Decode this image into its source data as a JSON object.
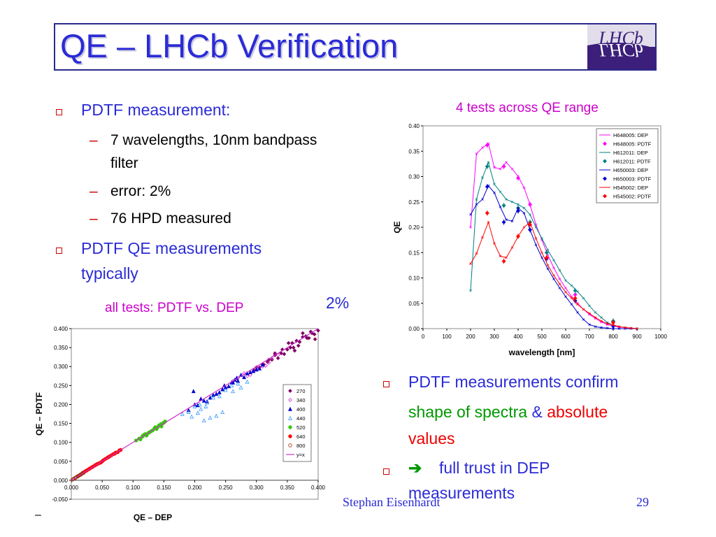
{
  "slide": {
    "title": "QE – LHCb Verification",
    "logo_text_top": "LHCb",
    "logo_text_bottom": "LHCb",
    "bullet1": "PDTF measurement:",
    "sub1a_line1": "7 wavelengths, 10nm bandpass",
    "sub1a_line2": "filter",
    "sub1b": "error: 2%",
    "sub1c": "76 HPD measured",
    "bullet2_line1": "PDTF QE measurements",
    "bullet2_line2": "typically",
    "bullet2_hidden_tail": "2%",
    "caption_right": "4 tests across QE range",
    "caption_left": "all tests: PDTF vs. DEP",
    "bullet3_line1": "PDTF measurements confirm",
    "bullet3_green": "shape of spectra",
    "bullet3_amp": "&",
    "bullet3_red1": "absolute",
    "bullet3_red2": "values",
    "bullet4_arrow": "➔",
    "bullet4_line1": "full trust in DEP",
    "bullet4_line2": "measurements",
    "footer_author": "Stephan Eisenhardt",
    "footer_page": "29",
    "footer_dash": "–"
  },
  "chart_data": [
    {
      "type": "line",
      "xlabel": "wavelength [nm]",
      "ylabel": "QE",
      "xlim": [
        0,
        1000
      ],
      "ylim": [
        0,
        0.4
      ],
      "xticks": [
        "0",
        "100",
        "200",
        "300",
        "400",
        "500",
        "600",
        "700",
        "800",
        "900",
        "1000"
      ],
      "yticks": [
        "0.00",
        "0.05",
        "0.10",
        "0.15",
        "0.20",
        "0.25",
        "0.30",
        "0.35",
        "0.40"
      ],
      "legend": "top-right",
      "series": [
        {
          "name": "H648005: DEP",
          "color": "#ff00ff",
          "kind": "line",
          "x": [
            200,
            225,
            250,
            275,
            300,
            325,
            350,
            375,
            400,
            425,
            450,
            475,
            500,
            525,
            550,
            575,
            600,
            625,
            650,
            675,
            700,
            725,
            750,
            775,
            800,
            825,
            850,
            875,
            900
          ],
          "y": [
            0.2,
            0.345,
            0.357,
            0.365,
            0.318,
            0.315,
            0.328,
            0.315,
            0.3,
            0.278,
            0.245,
            0.205,
            0.175,
            0.145,
            0.12,
            0.098,
            0.08,
            0.063,
            0.05,
            0.038,
            0.028,
            0.02,
            0.013,
            0.008,
            0.005,
            0.003,
            0.002,
            0.001,
            0.0
          ]
        },
        {
          "name": "H648005: PDTF",
          "color": "#ff00ff",
          "kind": "points",
          "x": [
            270,
            340,
            400,
            450,
            520,
            640,
            800
          ],
          "y": [
            0.362,
            0.32,
            0.297,
            0.245,
            0.15,
            0.067,
            0.014
          ]
        },
        {
          "name": "H612011: DEP",
          "color": "#008080",
          "kind": "line",
          "x": [
            200,
            225,
            250,
            275,
            300,
            325,
            350,
            375,
            400,
            425,
            450,
            475,
            500,
            525,
            550,
            575,
            600,
            625,
            650,
            675,
            700,
            725,
            750,
            775,
            800,
            825,
            850,
            875,
            900
          ],
          "y": [
            0.075,
            0.255,
            0.298,
            0.328,
            0.285,
            0.27,
            0.255,
            0.25,
            0.245,
            0.238,
            0.225,
            0.2,
            0.178,
            0.155,
            0.135,
            0.115,
            0.095,
            0.085,
            0.073,
            0.06,
            0.045,
            0.032,
            0.022,
            0.012,
            0.007,
            0.004,
            0.002,
            0.001,
            0.0
          ]
        },
        {
          "name": "H612011: PDTF",
          "color": "#008080",
          "kind": "points",
          "x": [
            270,
            340,
            400,
            450,
            520,
            640,
            800
          ],
          "y": [
            0.32,
            0.243,
            0.238,
            0.21,
            0.15,
            0.075,
            0.015
          ]
        },
        {
          "name": "H650003: DEP",
          "color": "#0000cc",
          "kind": "line",
          "x": [
            200,
            225,
            250,
            275,
            300,
            325,
            350,
            375,
            400,
            425,
            450,
            475,
            500,
            525,
            550,
            575,
            600,
            625,
            650,
            675,
            700,
            725,
            750,
            775,
            800,
            825,
            850,
            875,
            900
          ],
          "y": [
            0.225,
            0.245,
            0.255,
            0.282,
            0.268,
            0.24,
            0.215,
            0.212,
            0.238,
            0.228,
            0.195,
            0.165,
            0.14,
            0.118,
            0.098,
            0.08,
            0.063,
            0.048,
            0.032,
            0.018,
            0.008,
            0.004,
            0.002,
            0.001,
            0.0,
            0.0,
            0.0,
            0.0,
            0.0
          ]
        },
        {
          "name": "H650003: PDTF",
          "color": "#0000cc",
          "kind": "points",
          "x": [
            270,
            340,
            400,
            450,
            520,
            640,
            800
          ],
          "y": [
            0.28,
            0.21,
            0.232,
            0.195,
            0.138,
            0.055,
            0.005
          ]
        },
        {
          "name": "H545002: DEP",
          "color": "#ff0000",
          "kind": "line",
          "x": [
            200,
            225,
            250,
            275,
            300,
            325,
            350,
            375,
            400,
            425,
            450,
            475,
            500,
            525,
            550,
            575,
            600,
            625,
            650,
            675,
            700,
            725,
            750,
            775,
            800,
            825,
            850,
            875,
            900
          ],
          "y": [
            0.128,
            0.148,
            0.18,
            0.21,
            0.168,
            0.143,
            0.14,
            0.16,
            0.182,
            0.2,
            0.21,
            0.178,
            0.15,
            0.125,
            0.105,
            0.088,
            0.072,
            0.06,
            0.048,
            0.038,
            0.03,
            0.022,
            0.015,
            0.01,
            0.007,
            0.004,
            0.002,
            0.001,
            0.0
          ]
        },
        {
          "name": "H545002: PDTF",
          "color": "#ff0000",
          "kind": "points",
          "x": [
            270,
            340,
            400,
            450,
            520,
            640,
            800
          ],
          "y": [
            0.228,
            0.133,
            0.182,
            0.205,
            0.14,
            0.06,
            0.012
          ]
        }
      ]
    },
    {
      "type": "scatter",
      "xlabel": "QE – DEP",
      "ylabel": "QE – PDTF",
      "xlim": [
        0,
        0.4
      ],
      "ylim": [
        -0.05,
        0.4
      ],
      "xticks": [
        "0.000",
        "0.050",
        "0.100",
        "0.150",
        "0.200",
        "0.250",
        "0.300",
        "0.350",
        "0.400"
      ],
      "yticks": [
        "-0.050",
        "0.000",
        "0.050",
        "0.100",
        "0.150",
        "0.200",
        "0.250",
        "0.300",
        "0.350",
        "0.400"
      ],
      "legend": "right",
      "series": [
        {
          "name": "270",
          "color": "#800060",
          "marker": "diamond-filled",
          "x": [
            0.3,
            0.31,
            0.32,
            0.33,
            0.34,
            0.35,
            0.355,
            0.36,
            0.365,
            0.37,
            0.375,
            0.38,
            0.385,
            0.39,
            0.395,
            0.4,
            0.375,
            0.345,
            0.335,
            0.362,
            0.318,
            0.305,
            0.352,
            0.388,
            0.325,
            0.368,
            0.342,
            0.296,
            0.312,
            0.382,
            0.394,
            0.358,
            0.33
          ],
          "y": [
            0.298,
            0.305,
            0.318,
            0.33,
            0.335,
            0.345,
            0.35,
            0.35,
            0.368,
            0.365,
            0.378,
            0.38,
            0.375,
            0.388,
            0.372,
            0.395,
            0.388,
            0.333,
            0.322,
            0.342,
            0.312,
            0.298,
            0.362,
            0.392,
            0.318,
            0.355,
            0.345,
            0.29,
            0.305,
            0.375,
            0.385,
            0.362,
            0.335
          ]
        },
        {
          "name": "340",
          "color": "#cc33cc",
          "marker": "diamond-open",
          "x": [
            0.28,
            0.29,
            0.3,
            0.31,
            0.32,
            0.285,
            0.295,
            0.305,
            0.315,
            0.325,
            0.335,
            0.27,
            0.262
          ],
          "y": [
            0.282,
            0.278,
            0.295,
            0.3,
            0.31,
            0.275,
            0.288,
            0.298,
            0.302,
            0.322,
            0.33,
            0.27,
            0.262
          ]
        },
        {
          "name": "400",
          "color": "#0000cc",
          "marker": "triangle-filled",
          "x": [
            0.19,
            0.2,
            0.21,
            0.22,
            0.23,
            0.24,
            0.25,
            0.26,
            0.27,
            0.28,
            0.29,
            0.3,
            0.245,
            0.255,
            0.265,
            0.235,
            0.275,
            0.285,
            0.215,
            0.225,
            0.295,
            0.205,
            0.198,
            0.305,
            0.31,
            0.268,
            0.248,
            0.262
          ],
          "y": [
            0.185,
            0.2,
            0.215,
            0.208,
            0.225,
            0.232,
            0.245,
            0.258,
            0.262,
            0.272,
            0.285,
            0.292,
            0.24,
            0.248,
            0.265,
            0.228,
            0.278,
            0.282,
            0.21,
            0.218,
            0.288,
            0.198,
            0.235,
            0.295,
            0.305,
            0.27,
            0.25,
            0.258
          ]
        },
        {
          "name": "440",
          "color": "#3399ff",
          "marker": "triangle-open",
          "x": [
            0.18,
            0.19,
            0.2,
            0.21,
            0.22,
            0.23,
            0.24,
            0.25,
            0.26,
            0.27,
            0.215,
            0.225,
            0.235,
            0.245,
            0.195,
            0.205,
            0.262,
            0.275,
            0.285,
            0.218,
            0.208
          ],
          "y": [
            0.175,
            0.18,
            0.195,
            0.188,
            0.205,
            0.218,
            0.222,
            0.238,
            0.25,
            0.255,
            0.158,
            0.165,
            0.17,
            0.18,
            0.168,
            0.178,
            0.235,
            0.245,
            0.26,
            0.195,
            0.2
          ]
        },
        {
          "name": "520",
          "color": "#33cc00",
          "marker": "circle-filled",
          "x": [
            0.11,
            0.115,
            0.12,
            0.125,
            0.13,
            0.135,
            0.14,
            0.145,
            0.15,
            0.105,
            0.118,
            0.128,
            0.138,
            0.148,
            0.122,
            0.132,
            0.142,
            0.112,
            0.146,
            0.152,
            0.136,
            0.126,
            0.116
          ],
          "y": [
            0.11,
            0.115,
            0.122,
            0.125,
            0.13,
            0.138,
            0.14,
            0.148,
            0.152,
            0.105,
            0.12,
            0.128,
            0.135,
            0.15,
            0.118,
            0.132,
            0.145,
            0.108,
            0.142,
            0.155,
            0.14,
            0.126,
            0.118
          ]
        },
        {
          "name": "640",
          "color": "#ff0000",
          "marker": "circle-filled",
          "x": [
            0.01,
            0.015,
            0.02,
            0.025,
            0.03,
            0.035,
            0.04,
            0.045,
            0.05,
            0.055,
            0.06,
            0.065,
            0.07,
            0.075,
            0.08,
            0.038,
            0.048,
            0.058,
            0.068,
            0.028,
            0.018,
            0.042,
            0.052,
            0.062,
            0.072,
            0.033,
            0.023,
            0.078
          ],
          "y": [
            0.01,
            0.015,
            0.021,
            0.026,
            0.031,
            0.036,
            0.041,
            0.045,
            0.05,
            0.056,
            0.061,
            0.066,
            0.07,
            0.074,
            0.08,
            0.039,
            0.047,
            0.059,
            0.069,
            0.029,
            0.019,
            0.043,
            0.053,
            0.063,
            0.073,
            0.034,
            0.024,
            0.079
          ]
        },
        {
          "name": "800",
          "color": "#993300",
          "marker": "circle-open",
          "x": [
            0.002,
            0.004,
            0.006,
            0.008,
            0.01,
            0.012,
            0.014,
            0.016,
            0.018,
            0.02,
            0.003,
            0.007,
            0.011,
            0.015
          ],
          "y": [
            0.002,
            0.004,
            0.006,
            0.008,
            0.01,
            0.012,
            0.014,
            0.016,
            0.018,
            0.02,
            0.003,
            0.007,
            0.011,
            0.015
          ]
        },
        {
          "name": "y=x",
          "color": "#cc33cc",
          "marker": "line",
          "x": [
            0,
            0.4
          ],
          "y": [
            0,
            0.4
          ]
        }
      ]
    }
  ]
}
